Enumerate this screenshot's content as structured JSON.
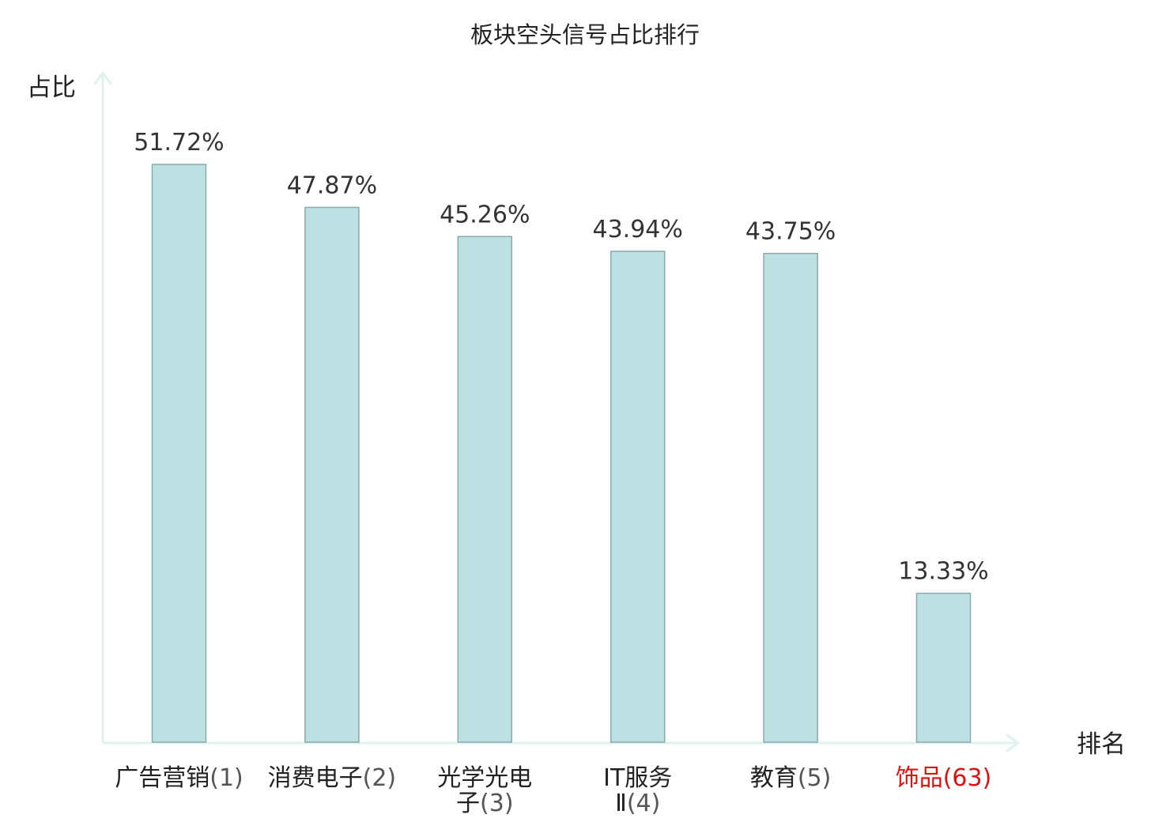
{
  "chart_data": {
    "type": "bar",
    "title": "板块空头信号占比排行",
    "ylabel": "占比",
    "xlabel": "排名",
    "categories": [
      {
        "name": "广告营销",
        "rank": "(1)",
        "lines": [
          [
            "广告营销",
            "(1)"
          ]
        ]
      },
      {
        "name": "消费电子",
        "rank": "(2)",
        "lines": [
          [
            "消费电子",
            "(2)"
          ]
        ]
      },
      {
        "name": "光学光电子",
        "rank": "(3)",
        "lines": [
          [
            "光学光电",
            ""
          ],
          [
            "子",
            "(3)"
          ]
        ]
      },
      {
        "name": "IT服务Ⅱ",
        "rank": "(4)",
        "lines": [
          [
            "IT服务",
            ""
          ],
          [
            "Ⅱ",
            "(4)"
          ]
        ]
      },
      {
        "name": "教育",
        "rank": "(5)",
        "lines": [
          [
            "教育",
            "(5)"
          ]
        ]
      },
      {
        "name": "饰品",
        "rank": "(63)",
        "lines": [
          [
            "饰品",
            "(63)"
          ]
        ],
        "highlight": true
      }
    ],
    "values": [
      51.72,
      47.87,
      45.26,
      43.94,
      43.75,
      13.33
    ],
    "value_labels": [
      "51.72%",
      "47.87%",
      "45.26%",
      "43.94%",
      "43.75%",
      "13.33%"
    ],
    "ylim": [
      0,
      60
    ],
    "grid": false,
    "colors": {
      "bar_fill": "#bde0e3",
      "bar_stroke": "#8aa9ab",
      "axis": "#dff2ef",
      "highlight": "#e01010"
    }
  }
}
